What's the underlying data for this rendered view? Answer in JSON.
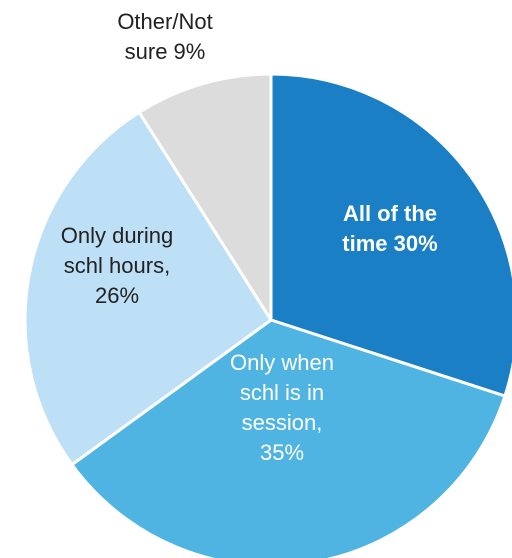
{
  "chart_data": {
    "type": "pie",
    "slices": [
      {
        "value": 30,
        "label_lines": [
          "All of the",
          "time 30%"
        ],
        "color": "#1a7fc4",
        "text_color": "#ffffff",
        "bold": true
      },
      {
        "value": 35,
        "label_lines": [
          "Only when",
          "schl is in",
          "session,",
          "35%"
        ],
        "color": "#50b4e2",
        "text_color": "#ffffff",
        "bold": false
      },
      {
        "value": 26,
        "label_lines": [
          "Only during",
          "schl hours,",
          "26%"
        ],
        "color": "#bde0f6",
        "text_color": "#222222",
        "bold": false
      },
      {
        "value": 9,
        "label_lines": [
          "Other/Not",
          "sure 9%"
        ],
        "color": "#dcdcdc",
        "text_color": "#222222",
        "bold": false
      }
    ],
    "start_angle_deg": 0,
    "direction": "clockwise"
  }
}
